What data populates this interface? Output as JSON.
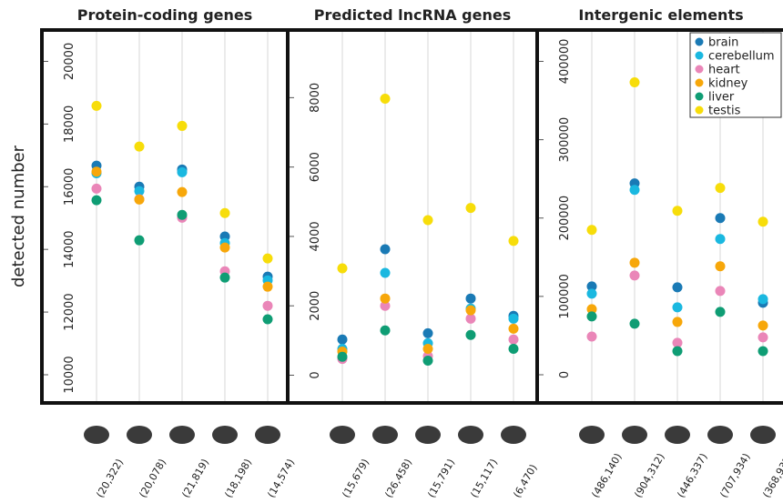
{
  "y_label": "detected number",
  "chart_data": [
    {
      "type": "scatter",
      "title": "Protein-coding genes",
      "categories": [
        "(20,322)",
        "(20,078)",
        "(21,819)",
        "(18,198)",
        "(14,574)"
      ],
      "ylim": [
        9100,
        21000
      ],
      "yticks": [
        10000,
        12000,
        14000,
        16000,
        18000,
        20000
      ],
      "grid": true,
      "series": [
        {
          "name": "brain",
          "color": "#1a7ab5",
          "values": [
            16670,
            16000,
            16550,
            14410,
            13130
          ]
        },
        {
          "name": "cerebellum",
          "color": "#1ab8e0",
          "values": [
            16430,
            15860,
            16460,
            14200,
            13010
          ]
        },
        {
          "name": "heart",
          "color": "#ea86b8",
          "values": [
            15940,
            15600,
            15010,
            13300,
            12200
          ]
        },
        {
          "name": "kidney",
          "color": "#f7a70a",
          "values": [
            16480,
            15590,
            15830,
            14060,
            12810
          ]
        },
        {
          "name": "liver",
          "color": "#0f9d74",
          "values": [
            15570,
            14290,
            15100,
            13100,
            11770
          ]
        },
        {
          "name": "testis",
          "color": "#f7dd0a",
          "values": [
            18580,
            17280,
            17940,
            15160,
            13710
          ]
        }
      ]
    },
    {
      "type": "scatter",
      "title": "Predicted lncRNA genes",
      "categories": [
        "(15,679)",
        "(26,458)",
        "(15,791)",
        "(15,117)",
        "(6,470)"
      ],
      "ylim": [
        -800,
        9950
      ],
      "yticks": [
        0,
        2000,
        4000,
        6000,
        8000
      ],
      "grid": true,
      "series": [
        {
          "name": "brain",
          "color": "#1a7ab5",
          "values": [
            1030,
            3630,
            1210,
            2210,
            1710
          ]
        },
        {
          "name": "cerebellum",
          "color": "#1ab8e0",
          "values": [
            760,
            2950,
            920,
            1920,
            1630
          ]
        },
        {
          "name": "heart",
          "color": "#ea86b8",
          "values": [
            470,
            2000,
            550,
            1630,
            1030
          ]
        },
        {
          "name": "kidney",
          "color": "#f7a70a",
          "values": [
            680,
            2210,
            760,
            1870,
            1340
          ]
        },
        {
          "name": "liver",
          "color": "#0f9d74",
          "values": [
            530,
            1290,
            420,
            1160,
            760
          ]
        },
        {
          "name": "testis",
          "color": "#f7dd0a",
          "values": [
            3080,
            7970,
            4470,
            4820,
            3870
          ]
        }
      ]
    },
    {
      "type": "scatter",
      "title": "Intergenic elements",
      "categories": [
        "(486,140)",
        "(904,312)",
        "(446,337)",
        "(707,934)",
        "(368,937)"
      ],
      "ylim": [
        -36000,
        440000
      ],
      "yticks": [
        0,
        100000,
        200000,
        300000,
        400000
      ],
      "grid": true,
      "legend": "upper right",
      "series": [
        {
          "name": "brain",
          "color": "#1a7ab5",
          "values": [
            112800,
            244200,
            111600,
            200000,
            91900
          ]
        },
        {
          "name": "cerebellum",
          "color": "#1ab8e0",
          "values": [
            103500,
            236000,
            86000,
            173300,
            96500
          ]
        },
        {
          "name": "heart",
          "color": "#ea86b8",
          "values": [
            48800,
            126700,
            40700,
            107000,
            47700
          ]
        },
        {
          "name": "kidney",
          "color": "#f7a70a",
          "values": [
            83700,
            143000,
            67400,
            138400,
            62800
          ]
        },
        {
          "name": "liver",
          "color": "#0f9d74",
          "values": [
            74400,
            65100,
            30200,
            80200,
            30200
          ]
        },
        {
          "name": "testis",
          "color": "#f7dd0a",
          "values": [
            184900,
            373300,
            209300,
            238400,
            195300
          ]
        }
      ]
    }
  ]
}
